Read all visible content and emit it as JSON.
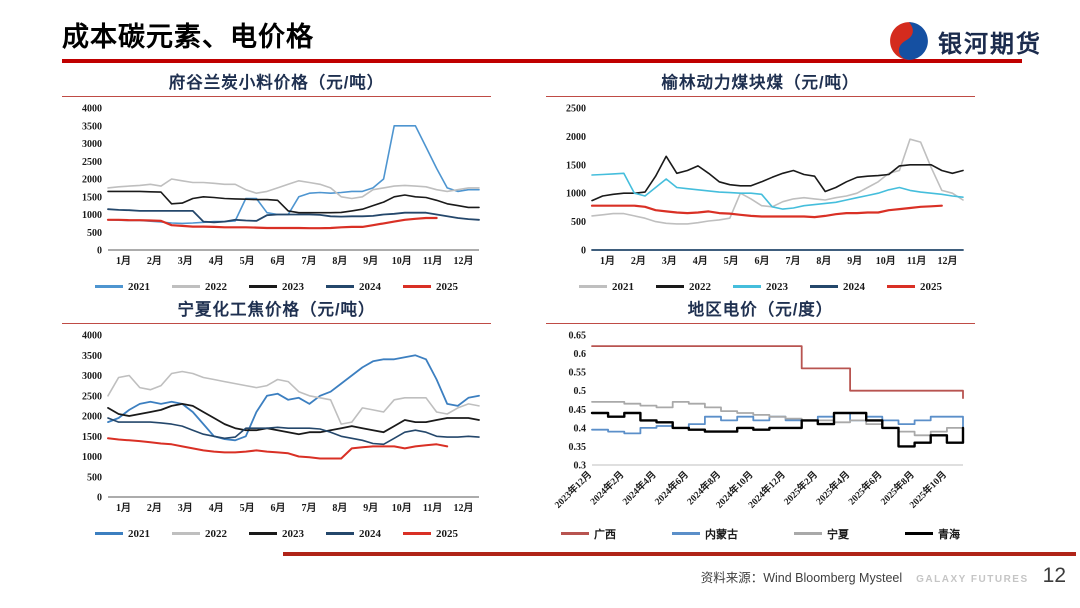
{
  "header": {
    "title": "成本碳元素、电价格"
  },
  "logo": {
    "text": "银河期货"
  },
  "footer": {
    "source": "资料来源：Wind Bloomberg Mysteel",
    "brand": "GALAXY FUTURES",
    "page": "12"
  },
  "colors": {
    "accent_red": "#C00000",
    "footer_rule": "#B02418",
    "logo_blue": "#1550A2",
    "logo_red": "#D42B1E",
    "title_text": "#1F3050"
  },
  "chart_data": [
    {
      "type": "line",
      "title": "府谷兰炭小料价格（元/吨）",
      "ylabel": "元/吨",
      "ylim": [
        0,
        4000
      ],
      "yticks": [
        0,
        500,
        1000,
        1500,
        2000,
        2500,
        3000,
        3500,
        4000
      ],
      "grid": false,
      "legend_position": "bottom",
      "axis_color": "#595959",
      "categories": [
        "1月",
        "2月",
        "3月",
        "4月",
        "5月",
        "6月",
        "7月",
        "8月",
        "9月",
        "10月",
        "11月",
        "12月"
      ],
      "series": [
        {
          "name": "2021",
          "color": "#4E95D0",
          "width": 1.6,
          "values": [
            850,
            840,
            830,
            830,
            810,
            790,
            760,
            750,
            760,
            780,
            800,
            800,
            820,
            1450,
            1450,
            1050,
            1000,
            1000,
            1500,
            1600,
            1620,
            1600,
            1620,
            1650,
            1650,
            1750,
            2000,
            3500,
            3500,
            3500,
            2900,
            2300,
            1750,
            1650,
            1700,
            1700
          ]
        },
        {
          "name": "2022",
          "color": "#BFBFBF",
          "width": 1.6,
          "values": [
            1750,
            1780,
            1800,
            1820,
            1850,
            1800,
            2000,
            1950,
            1900,
            1900,
            1880,
            1850,
            1850,
            1700,
            1600,
            1650,
            1750,
            1850,
            1950,
            1900,
            1850,
            1750,
            1500,
            1450,
            1500,
            1700,
            1750,
            1800,
            1820,
            1800,
            1780,
            1700,
            1650,
            1700,
            1750,
            1750
          ]
        },
        {
          "name": "2023",
          "color": "#1A1A1A",
          "width": 1.6,
          "values": [
            1650,
            1650,
            1650,
            1650,
            1640,
            1630,
            1300,
            1320,
            1450,
            1500,
            1480,
            1450,
            1440,
            1430,
            1420,
            1420,
            1400,
            1100,
            1050,
            1050,
            1050,
            1050,
            1060,
            1100,
            1150,
            1250,
            1350,
            1500,
            1550,
            1500,
            1480,
            1400,
            1300,
            1250,
            1200,
            1200
          ]
        },
        {
          "name": "2024",
          "color": "#24476B",
          "width": 1.8,
          "values": [
            1150,
            1130,
            1120,
            1100,
            1100,
            1100,
            1100,
            1100,
            1100,
            800,
            780,
            800,
            850,
            830,
            820,
            980,
            1000,
            1000,
            1000,
            1000,
            990,
            950,
            940,
            950,
            950,
            960,
            1000,
            1020,
            1050,
            1050,
            1050,
            1000,
            950,
            900,
            870,
            850
          ]
        },
        {
          "name": "2025",
          "color": "#D93025",
          "width": 2.2,
          "values": [
            850,
            850,
            840,
            840,
            830,
            820,
            700,
            680,
            660,
            660,
            650,
            640,
            640,
            640,
            630,
            620,
            620,
            620,
            620,
            615,
            615,
            620,
            640,
            650,
            650,
            700,
            750,
            800,
            850,
            880,
            900,
            900,
            null,
            null,
            null,
            null
          ]
        }
      ]
    },
    {
      "type": "line",
      "title": "榆林动力煤块煤（元/吨）",
      "ylabel": "元/吨",
      "ylim": [
        0,
        2500
      ],
      "yticks": [
        0,
        500,
        1000,
        1500,
        2000,
        2500
      ],
      "grid": false,
      "legend_position": "bottom",
      "axis_color": "#7F7F7F",
      "categories": [
        "1月",
        "2月",
        "3月",
        "4月",
        "5月",
        "6月",
        "7月",
        "8月",
        "9月",
        "10月",
        "11月",
        "12月"
      ],
      "series": [
        {
          "name": "2021",
          "color": "#BFBFBF",
          "width": 1.6,
          "values": [
            600,
            620,
            640,
            640,
            600,
            560,
            500,
            470,
            460,
            460,
            480,
            510,
            530,
            560,
            1000,
            900,
            780,
            760,
            850,
            900,
            920,
            900,
            880,
            920,
            950,
            1000,
            1100,
            1200,
            1350,
            1400,
            1950,
            1900,
            1450,
            1050,
            1000,
            880
          ]
        },
        {
          "name": "2022",
          "color": "#1A1A1A",
          "width": 1.6,
          "values": [
            870,
            950,
            980,
            1000,
            1000,
            1020,
            1300,
            1650,
            1350,
            1400,
            1480,
            1350,
            1200,
            1150,
            1130,
            1130,
            1200,
            1280,
            1350,
            1400,
            1330,
            1300,
            1030,
            1100,
            1200,
            1280,
            1300,
            1310,
            1330,
            1480,
            1500,
            1500,
            1500,
            1400,
            1350,
            1400
          ]
        },
        {
          "name": "2023",
          "color": "#45BEDC",
          "width": 1.6,
          "values": [
            1320,
            1330,
            1340,
            1350,
            1000,
            950,
            1100,
            1250,
            1100,
            1080,
            1060,
            1040,
            1020,
            1010,
            1000,
            1000,
            980,
            760,
            720,
            740,
            780,
            800,
            820,
            840,
            880,
            920,
            960,
            1000,
            1060,
            1100,
            1050,
            1020,
            1000,
            980,
            950,
            930
          ]
        },
        {
          "name": "2024",
          "color": "#24476B",
          "width": 1.8,
          "values": [
            0,
            0,
            0,
            0,
            0,
            0,
            0,
            0,
            0,
            0,
            0,
            0,
            0,
            0,
            0,
            0,
            0,
            0,
            0,
            0,
            0,
            0,
            0,
            0,
            0,
            0,
            0,
            0,
            0,
            0,
            0,
            0,
            0,
            0,
            0,
            0
          ]
        },
        {
          "name": "2025",
          "color": "#D93025",
          "width": 2.2,
          "values": [
            780,
            780,
            780,
            780,
            780,
            760,
            700,
            680,
            660,
            650,
            660,
            680,
            650,
            640,
            620,
            600,
            590,
            590,
            590,
            590,
            590,
            580,
            600,
            630,
            650,
            650,
            660,
            660,
            700,
            720,
            740,
            760,
            770,
            780,
            null,
            null
          ]
        }
      ]
    },
    {
      "type": "line",
      "title": "宁夏化工焦价格（元/吨）",
      "ylabel": "元/吨",
      "ylim": [
        0,
        4000
      ],
      "yticks": [
        0,
        500,
        1000,
        1500,
        2000,
        2500,
        3000,
        3500,
        4000
      ],
      "grid": false,
      "legend_position": "bottom",
      "axis_color": "#595959",
      "categories": [
        "1月",
        "2月",
        "3月",
        "4月",
        "5月",
        "6月",
        "7月",
        "8月",
        "9月",
        "10月",
        "11月",
        "12月"
      ],
      "series": [
        {
          "name": "2021",
          "color": "#3C7FC0",
          "width": 1.8,
          "values": [
            1850,
            1950,
            2150,
            2300,
            2350,
            2300,
            2350,
            2300,
            2100,
            1800,
            1500,
            1430,
            1400,
            1500,
            2100,
            2500,
            2550,
            2400,
            2450,
            2300,
            2500,
            2600,
            2800,
            3000,
            3200,
            3350,
            3400,
            3400,
            3450,
            3500,
            3400,
            2900,
            2300,
            2250,
            2450,
            2500
          ]
        },
        {
          "name": "2022",
          "color": "#BFBFBF",
          "width": 1.6,
          "values": [
            2500,
            2950,
            3000,
            2700,
            2650,
            2750,
            3050,
            3100,
            3050,
            2950,
            2900,
            2850,
            2800,
            2750,
            2700,
            2750,
            2900,
            2850,
            2600,
            2500,
            2450,
            2400,
            1800,
            1850,
            2200,
            2150,
            2100,
            2400,
            2450,
            2450,
            2450,
            2100,
            2050,
            2200,
            2300,
            2250
          ]
        },
        {
          "name": "2023",
          "color": "#1A1A1A",
          "width": 1.8,
          "values": [
            2200,
            2050,
            2000,
            2050,
            2100,
            2150,
            2250,
            2300,
            2250,
            2100,
            1950,
            1800,
            1700,
            1650,
            1650,
            1700,
            1650,
            1600,
            1550,
            1600,
            1600,
            1650,
            1700,
            1750,
            1700,
            1650,
            1600,
            1750,
            1900,
            1850,
            1850,
            1900,
            1950,
            1950,
            1950,
            1900
          ]
        },
        {
          "name": "2024",
          "color": "#24476B",
          "width": 1.6,
          "values": [
            1950,
            1850,
            1850,
            1850,
            1850,
            1830,
            1800,
            1750,
            1650,
            1550,
            1500,
            1450,
            1480,
            1700,
            1700,
            1700,
            1720,
            1700,
            1700,
            1700,
            1680,
            1600,
            1500,
            1450,
            1400,
            1320,
            1300,
            1450,
            1600,
            1650,
            1600,
            1500,
            1480,
            1480,
            1500,
            1480
          ]
        },
        {
          "name": "2025",
          "color": "#D93025",
          "width": 2.0,
          "values": [
            1450,
            1420,
            1400,
            1380,
            1350,
            1320,
            1300,
            1250,
            1200,
            1150,
            1120,
            1100,
            1100,
            1120,
            1150,
            1120,
            1100,
            1080,
            1000,
            980,
            950,
            950,
            950,
            1200,
            1230,
            1250,
            1250,
            1250,
            1200,
            1250,
            1280,
            1300,
            1250,
            null,
            null,
            null
          ]
        }
      ]
    },
    {
      "type": "line",
      "title": "地区电价（元/度）",
      "ylabel": "元/度",
      "ylim": [
        0.3,
        0.65
      ],
      "yticks": [
        0.3,
        0.35,
        0.4,
        0.45,
        0.5,
        0.55,
        0.6,
        0.65
      ],
      "grid": false,
      "legend_position": "bottom",
      "axis_color": "#BFBFBF",
      "step": true,
      "x_rotate": true,
      "x_label_step": 2,
      "categories": [
        "2023年12月",
        "2024年2月",
        "2024年4月",
        "2024年6月",
        "2024年8月",
        "2024年10月",
        "2024年12月",
        "2025年2月",
        "2025年4月",
        "2025年6月",
        "2025年8月",
        "2025年10月"
      ],
      "series": [
        {
          "name": "广西",
          "color": "#B85450",
          "width": 1.8,
          "values": [
            0.62,
            0.62,
            0.62,
            0.62,
            0.62,
            0.62,
            0.62,
            0.62,
            0.62,
            0.62,
            0.62,
            0.62,
            0.62,
            0.56,
            0.56,
            0.56,
            0.5,
            0.5,
            0.5,
            0.5,
            0.5,
            0.5,
            0.5,
            0.48
          ]
        },
        {
          "name": "内蒙古",
          "color": "#5B8FC9",
          "width": 1.8,
          "values": [
            0.395,
            0.39,
            0.385,
            0.4,
            0.405,
            0.4,
            0.41,
            0.43,
            0.42,
            0.43,
            0.42,
            0.43,
            0.42,
            0.42,
            0.43,
            0.44,
            0.42,
            0.43,
            0.42,
            0.41,
            0.42,
            0.43,
            0.43,
            0.4
          ]
        },
        {
          "name": "宁夏",
          "color": "#A9A9A9",
          "width": 1.8,
          "values": [
            0.47,
            0.47,
            0.465,
            0.46,
            0.455,
            0.47,
            0.465,
            0.455,
            0.445,
            0.44,
            0.435,
            0.43,
            0.425,
            0.42,
            0.42,
            0.415,
            0.42,
            0.41,
            0.4,
            0.39,
            0.38,
            0.39,
            0.4,
            0.4
          ]
        },
        {
          "name": "青海",
          "color": "#000000",
          "width": 2.4,
          "values": [
            0.44,
            0.43,
            0.44,
            0.42,
            0.415,
            0.4,
            0.395,
            0.39,
            0.39,
            0.4,
            0.395,
            0.4,
            0.4,
            0.42,
            0.41,
            0.44,
            0.44,
            0.42,
            0.4,
            0.35,
            0.36,
            0.38,
            0.36,
            0.4
          ]
        }
      ]
    }
  ]
}
